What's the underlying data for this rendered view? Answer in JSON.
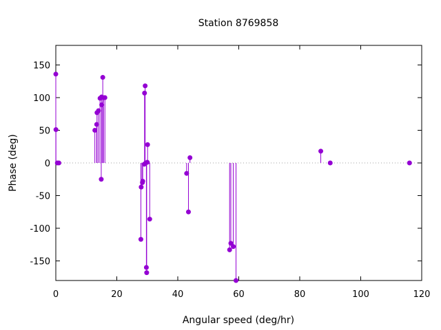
{
  "chart_data": {
    "type": "scatter",
    "style": "impulses-with-points",
    "title": "Station 8769858",
    "xlabel": "Angular speed (deg/hr)",
    "ylabel": "Phase (deg)",
    "xlim": [
      0,
      120
    ],
    "ylim": [
      -180,
      180
    ],
    "xticks": [
      0,
      20,
      40,
      60,
      80,
      100,
      120
    ],
    "yticks": [
      -150,
      -100,
      -50,
      0,
      50,
      100,
      150
    ],
    "zero_line": "dotted",
    "grid": false,
    "color": "#9400d3",
    "points": [
      {
        "x": 0.0,
        "y": 136
      },
      {
        "x": 0.04,
        "y": 51
      },
      {
        "x": 0.5,
        "y": 0
      },
      {
        "x": 1.0,
        "y": 0
      },
      {
        "x": 12.8,
        "y": 50
      },
      {
        "x": 13.4,
        "y": 59
      },
      {
        "x": 13.5,
        "y": 77
      },
      {
        "x": 14.0,
        "y": 80
      },
      {
        "x": 14.5,
        "y": 99
      },
      {
        "x": 14.9,
        "y": -25
      },
      {
        "x": 15.0,
        "y": 101
      },
      {
        "x": 15.05,
        "y": 89
      },
      {
        "x": 15.4,
        "y": 131
      },
      {
        "x": 15.6,
        "y": 100
      },
      {
        "x": 16.1,
        "y": 100
      },
      {
        "x": 27.9,
        "y": -117
      },
      {
        "x": 28.0,
        "y": -37
      },
      {
        "x": 28.4,
        "y": -30
      },
      {
        "x": 28.5,
        "y": -28
      },
      {
        "x": 29.0,
        "y": -2
      },
      {
        "x": 29.1,
        "y": 107
      },
      {
        "x": 29.3,
        "y": 118
      },
      {
        "x": 29.5,
        "y": 0
      },
      {
        "x": 29.7,
        "y": -160
      },
      {
        "x": 29.8,
        "y": -168
      },
      {
        "x": 30.0,
        "y": 1
      },
      {
        "x": 30.1,
        "y": 28
      },
      {
        "x": 30.8,
        "y": -86
      },
      {
        "x": 42.9,
        "y": -16
      },
      {
        "x": 43.5,
        "y": -75
      },
      {
        "x": 44.0,
        "y": 8
      },
      {
        "x": 57.0,
        "y": -133
      },
      {
        "x": 57.4,
        "y": -123
      },
      {
        "x": 58.2,
        "y": -128
      },
      {
        "x": 59.1,
        "y": -180
      },
      {
        "x": 86.9,
        "y": 18
      },
      {
        "x": 90.0,
        "y": 0
      },
      {
        "x": 116.0,
        "y": 0
      }
    ]
  }
}
